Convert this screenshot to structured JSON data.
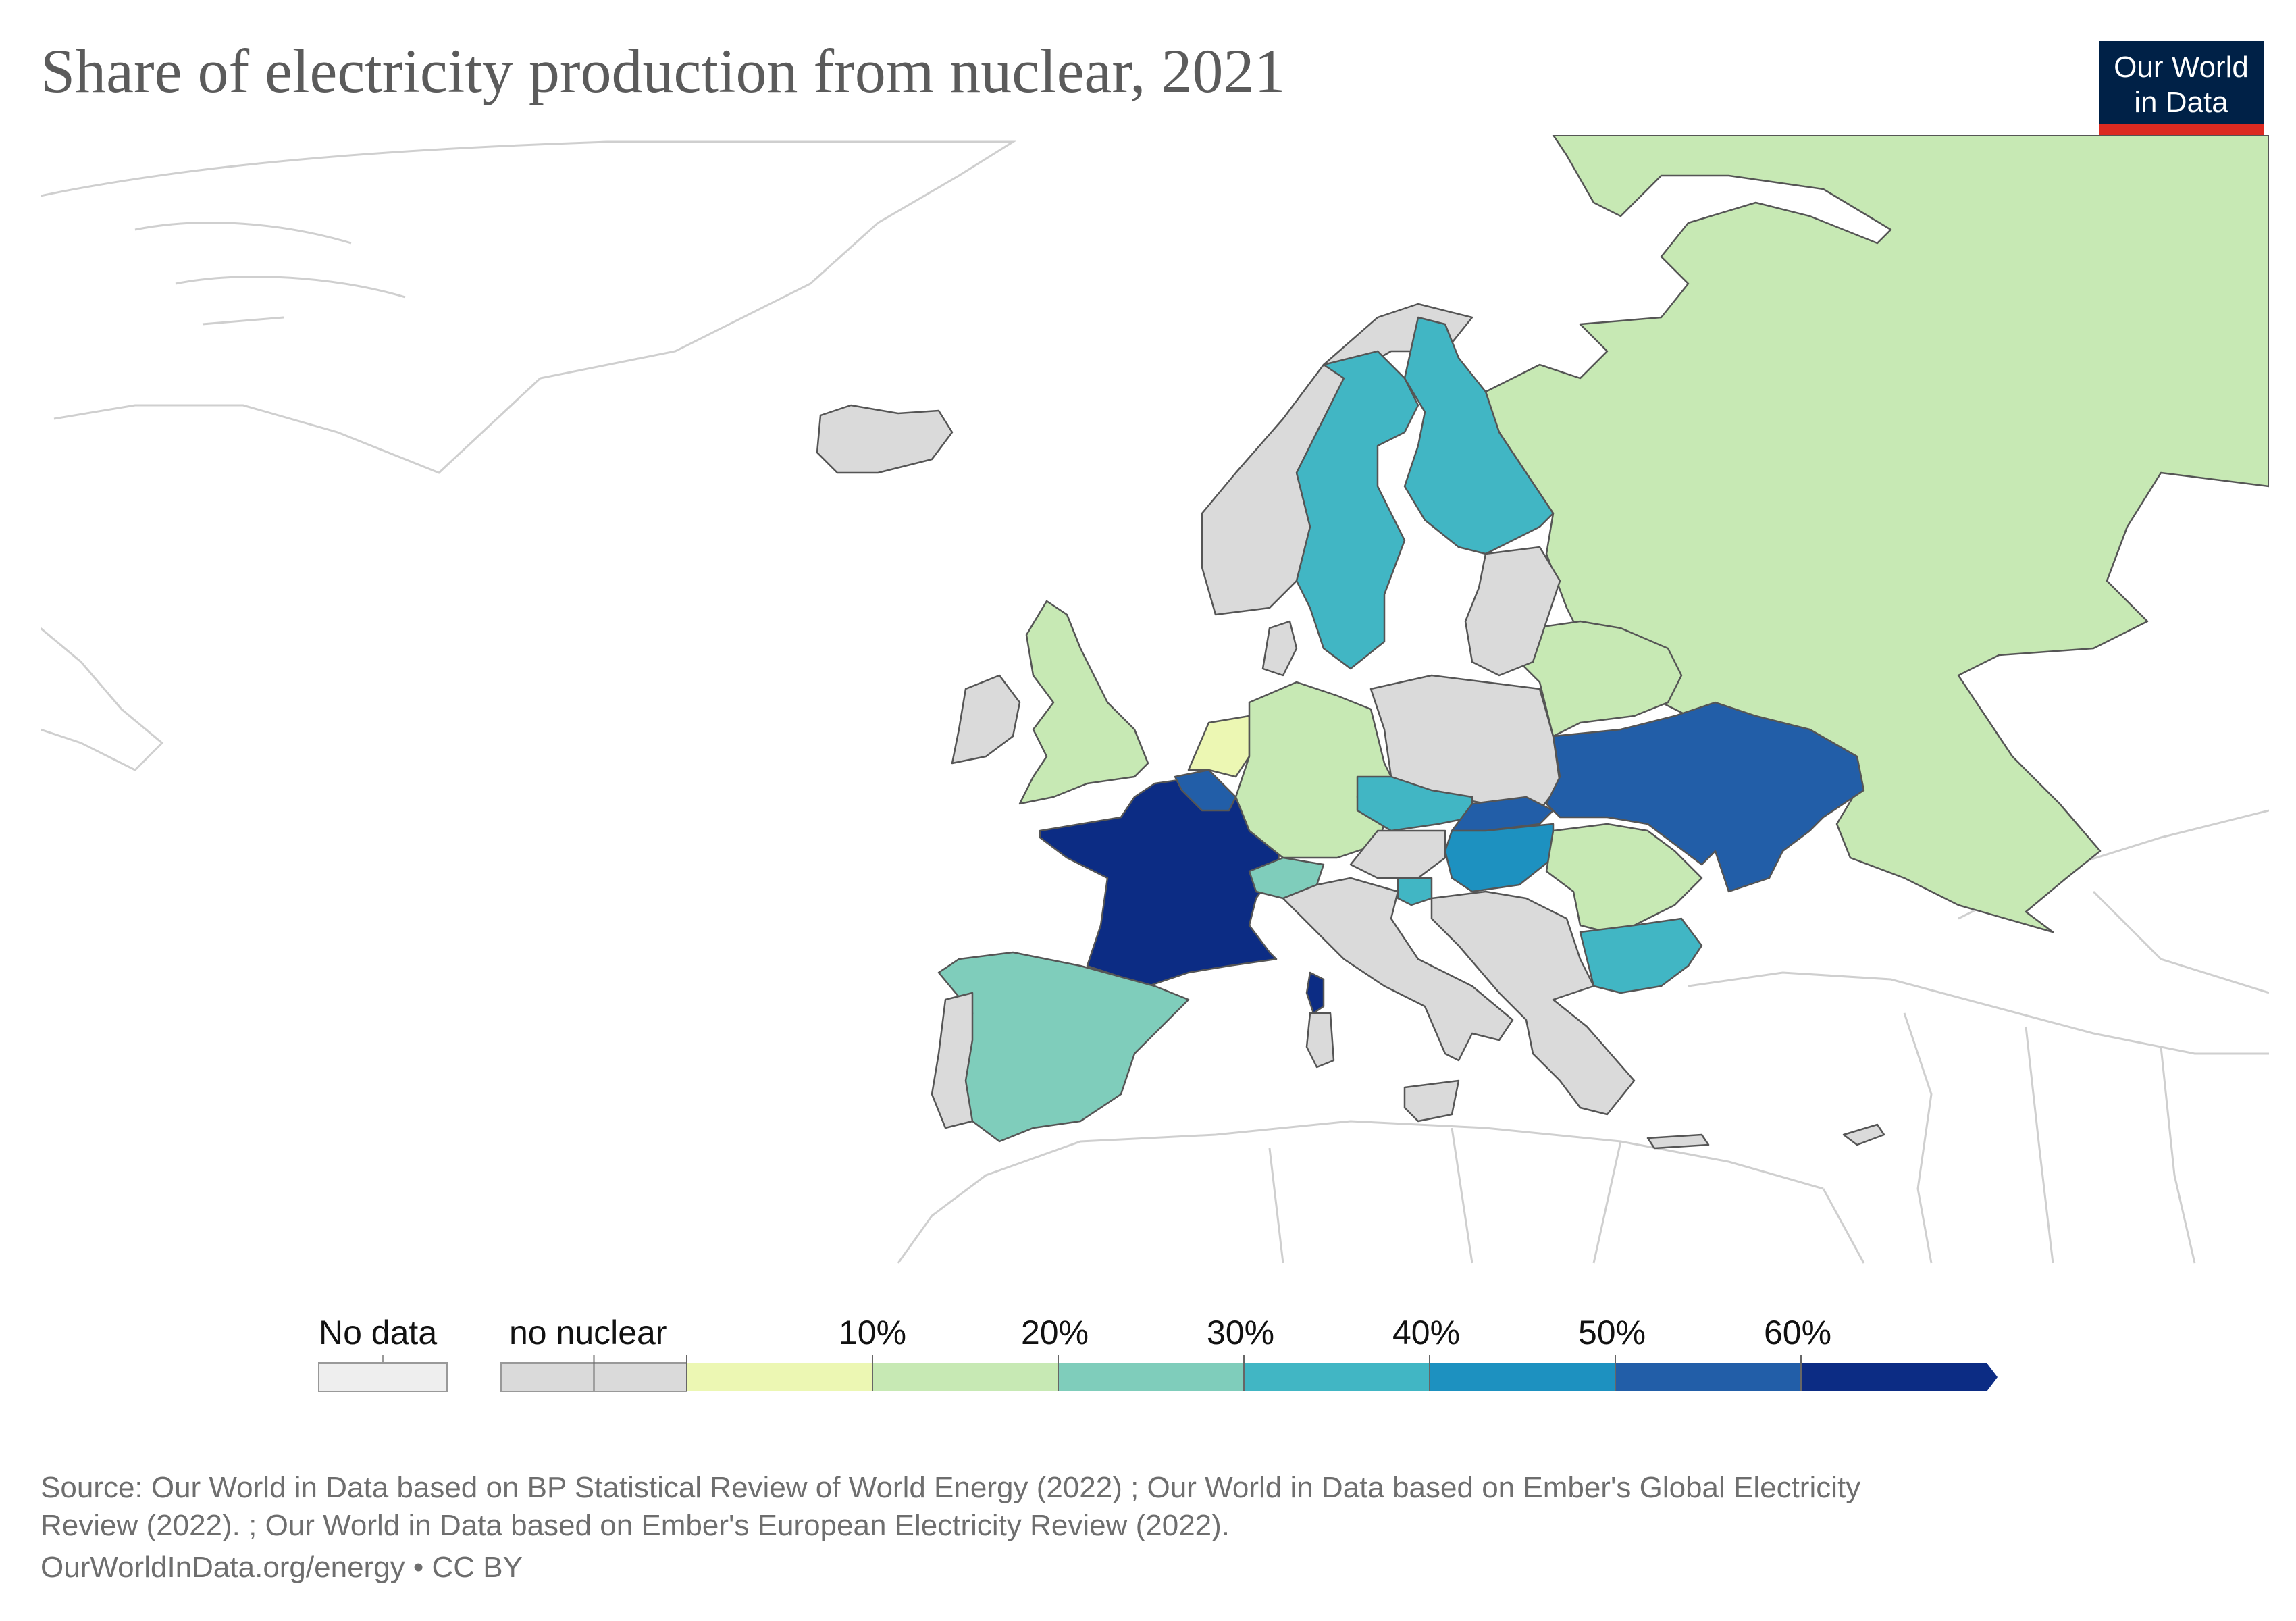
{
  "title": "Share of electricity production from nuclear, 2021",
  "logo": {
    "line1": "Our World",
    "line2": "in Data",
    "bg": "#002147",
    "accent": "#dc2a21"
  },
  "legend": {
    "no_data_label": "No data",
    "no_nuclear_label": "no nuclear",
    "ticks": [
      "10%",
      "20%",
      "30%",
      "40%",
      "50%",
      "60%"
    ],
    "colors": {
      "no_data": "#eeeeee",
      "no_nuclear": "#dadada",
      "bins": [
        "#ecf7b3",
        "#c7e9b4",
        "#7fcdbb",
        "#41b6c4",
        "#1d91c0",
        "#225ea8",
        "#0c2c84"
      ]
    }
  },
  "map_data": {
    "metric": "Share of electricity production from nuclear",
    "year": 2021,
    "countries": [
      {
        "name": "France",
        "bin": "60%+",
        "color": "#0c2c84"
      },
      {
        "name": "Slovakia",
        "bin": "50-60%",
        "color": "#225ea8"
      },
      {
        "name": "Ukraine",
        "bin": "50-60%",
        "color": "#225ea8"
      },
      {
        "name": "Belgium",
        "bin": "50-60%",
        "color": "#225ea8"
      },
      {
        "name": "Hungary",
        "bin": "40-50%",
        "color": "#1d91c0"
      },
      {
        "name": "Finland",
        "bin": "30-40%",
        "color": "#41b6c4"
      },
      {
        "name": "Sweden",
        "bin": "30-40%",
        "color": "#41b6c4"
      },
      {
        "name": "Czechia",
        "bin": "30-40%",
        "color": "#41b6c4"
      },
      {
        "name": "Slovenia",
        "bin": "30-40%",
        "color": "#41b6c4"
      },
      {
        "name": "Bulgaria",
        "bin": "30-40%",
        "color": "#41b6c4"
      },
      {
        "name": "Spain",
        "bin": "20-30%",
        "color": "#7fcdbb"
      },
      {
        "name": "Switzerland",
        "bin": "20-30%",
        "color": "#7fcdbb"
      },
      {
        "name": "Russia",
        "bin": "10-20%",
        "color": "#c7e9b4"
      },
      {
        "name": "United Kingdom",
        "bin": "10-20%",
        "color": "#c7e9b4"
      },
      {
        "name": "Germany",
        "bin": "10-20%",
        "color": "#c7e9b4"
      },
      {
        "name": "Romania",
        "bin": "10-20%",
        "color": "#c7e9b4"
      },
      {
        "name": "Belarus",
        "bin": "10-20%",
        "color": "#c7e9b4"
      },
      {
        "name": "Netherlands",
        "bin": "0-10%",
        "color": "#ecf7b3"
      },
      {
        "name": "Norway",
        "bin": "no nuclear",
        "color": "#dadada"
      },
      {
        "name": "Poland",
        "bin": "no nuclear",
        "color": "#dadada"
      },
      {
        "name": "Italy",
        "bin": "no nuclear",
        "color": "#dadada"
      },
      {
        "name": "Portugal",
        "bin": "no nuclear",
        "color": "#dadada"
      },
      {
        "name": "Ireland",
        "bin": "no nuclear",
        "color": "#dadada"
      },
      {
        "name": "Iceland",
        "bin": "no nuclear",
        "color": "#dadada"
      },
      {
        "name": "Greece",
        "bin": "no nuclear",
        "color": "#dadada"
      },
      {
        "name": "Austria",
        "bin": "no nuclear",
        "color": "#dadada"
      },
      {
        "name": "Denmark",
        "bin": "no nuclear",
        "color": "#dadada"
      },
      {
        "name": "Baltic states",
        "bin": "no nuclear",
        "color": "#dadada"
      }
    ]
  },
  "footer": {
    "source_line1": "Source: Our World in Data based on BP Statistical Review of World Energy (2022) ; Our World in Data based on Ember's Global Electricity",
    "source_line2": "Review (2022). ; Our World in Data based on Ember's European Electricity Review (2022).",
    "link": "OurWorldInData.org/energy • CC BY"
  }
}
